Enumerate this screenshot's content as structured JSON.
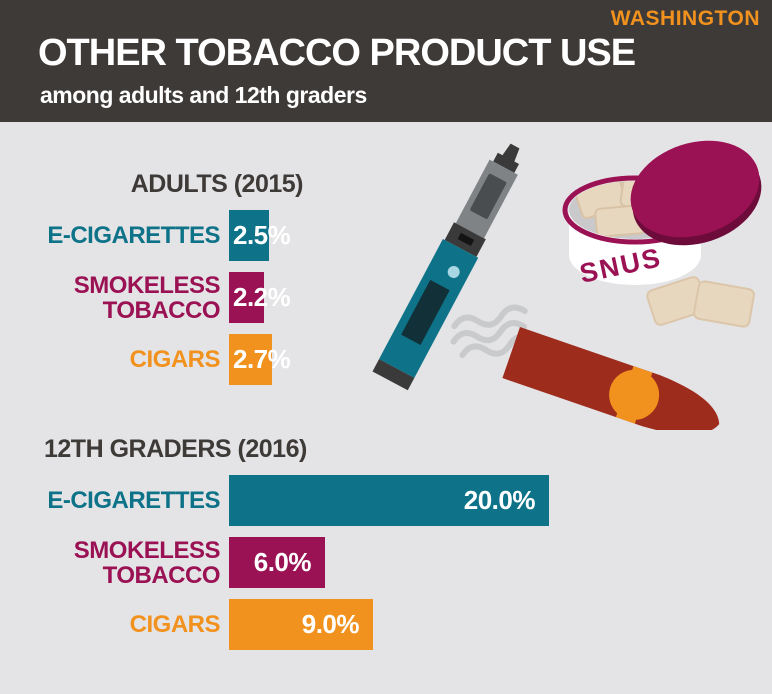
{
  "header": {
    "region": "WASHINGTON",
    "title": "OTHER TOBACCO PRODUCT USE",
    "subtitle": "among adults and 12th graders"
  },
  "colors": {
    "header_background": "#3E3A38",
    "page_background": "#E4E4E6",
    "accent_orange": "#F2921E",
    "teal": "#0E7389",
    "maroon": "#9B1254",
    "charcoal_text": "#3E3A38",
    "white": "#FFFFFF",
    "cigar_body": "#9E2C1D",
    "smoke_gray": "#C9CACC",
    "pouch_beige": "#E8D7BF"
  },
  "chart_data": [
    {
      "type": "bar",
      "orientation": "horizontal",
      "title": "ADULTS (2015)",
      "categories": [
        "E-CIGARETTES",
        "SMOKELESS TOBACCO",
        "CIGARS"
      ],
      "values": [
        2.5,
        2.2,
        2.7
      ],
      "value_labels": [
        "2.5%",
        "2.2%",
        "2.7%"
      ],
      "bar_colors": [
        "#0E7389",
        "#9B1254",
        "#F2921E"
      ],
      "unit": "percent",
      "xlim": [
        0,
        20
      ],
      "grid": false,
      "legend": false
    },
    {
      "type": "bar",
      "orientation": "horizontal",
      "title": "12TH GRADERS (2016)",
      "categories": [
        "E-CIGARETTES",
        "SMOKELESS TOBACCO",
        "CIGARS"
      ],
      "values": [
        20.0,
        6.0,
        9.0
      ],
      "value_labels": [
        "20.0%",
        "6.0%",
        "9.0%"
      ],
      "bar_colors": [
        "#0E7389",
        "#9B1254",
        "#F2921E"
      ],
      "unit": "percent",
      "xlim": [
        0,
        20
      ],
      "grid": false,
      "legend": false
    }
  ],
  "illustrations": {
    "names": [
      "e-cigarette-vape-pen",
      "snus-tin-with-pouches",
      "cigar-with-smoke"
    ],
    "snus_label": "SNUS"
  }
}
